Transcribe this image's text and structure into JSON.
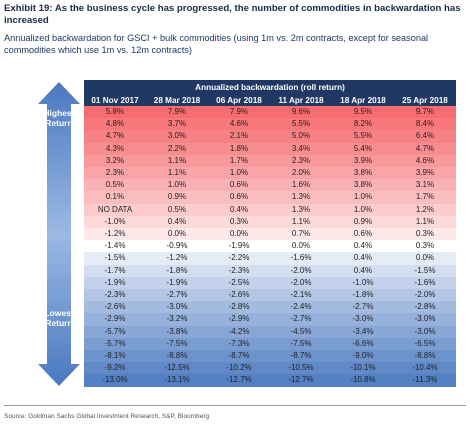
{
  "header": {
    "title": "Exhibit 19: As the business cycle has progressed, the number of commodities in backwardation has increased",
    "subtitle": "Annualized backwardation for GSCI + bulk commodities (using 1m vs. 2m contracts, except for seasonal commodities which use 1m vs. 12m contracts)"
  },
  "arrow": {
    "top_label": "Highest Return",
    "bottom_label": "Lowest Return"
  },
  "table": {
    "title": "Annualized backwardation (roll return)",
    "columns": [
      "01 Nov 2017",
      "28 Mar 2018",
      "06 Apr 2018",
      "11 Apr 2018",
      "18 Apr 2018",
      "25 Apr 2018"
    ],
    "rows": [
      [
        "5.8%",
        "7.9%",
        "7.9%",
        "9.6%",
        "9.5%",
        "9.7%"
      ],
      [
        "4.8%",
        "3.7%",
        "4.6%",
        "5.5%",
        "8.2%",
        "8.4%"
      ],
      [
        "4.7%",
        "3.0%",
        "2.1%",
        "5.0%",
        "5.5%",
        "6.4%"
      ],
      [
        "4.3%",
        "2.2%",
        "1.8%",
        "3.4%",
        "5.4%",
        "4.7%"
      ],
      [
        "3.2%",
        "1.1%",
        "1.7%",
        "2.3%",
        "3.9%",
        "4.6%"
      ],
      [
        "2.3%",
        "1.1%",
        "1.0%",
        "2.0%",
        "3.8%",
        "3.9%"
      ],
      [
        "0.5%",
        "1.0%",
        "0.6%",
        "1.6%",
        "3.8%",
        "3.1%"
      ],
      [
        "0.1%",
        "0.9%",
        "0.6%",
        "1.3%",
        "1.0%",
        "1.7%"
      ],
      [
        "NO DATA",
        "0.5%",
        "0.4%",
        "1.3%",
        "1.0%",
        "1.2%"
      ],
      [
        "-1.0%",
        "0.4%",
        "0.3%",
        "1.1%",
        "0.9%",
        "1.1%"
      ],
      [
        "-1.2%",
        "0.0%",
        "0.0%",
        "0.7%",
        "0.6%",
        "0.3%"
      ],
      [
        "-1.4%",
        "-0.9%",
        "-1.9%",
        "0.0%",
        "0.4%",
        "0.3%"
      ],
      [
        "-1.5%",
        "-1.2%",
        "-2.2%",
        "-1.6%",
        "0.4%",
        "0.0%"
      ],
      [
        "-1.7%",
        "-1.8%",
        "-2.3%",
        "-2.0%",
        "0.4%",
        "-1.5%"
      ],
      [
        "-1.9%",
        "-1.9%",
        "-2.5%",
        "-2.0%",
        "-1.0%",
        "-1.6%"
      ],
      [
        "-2.3%",
        "-2.7%",
        "-2.6%",
        "-2.1%",
        "-1.8%",
        "-2.0%"
      ],
      [
        "-2.6%",
        "-3.0%",
        "-2.8%",
        "-2.4%",
        "-2.7%",
        "-2.8%"
      ],
      [
        "-2.9%",
        "-3.2%",
        "-2.9%",
        "-2.7%",
        "-3.0%",
        "-3.0%"
      ],
      [
        "-5.7%",
        "-3.8%",
        "-4.2%",
        "-4.5%",
        "-3.4%",
        "-3.0%"
      ],
      [
        "-5.7%",
        "-7.5%",
        "-7.3%",
        "-7.5%",
        "-6.6%",
        "-6.5%"
      ],
      [
        "-8.1%",
        "-8.8%",
        "-8.7%",
        "-8.7%",
        "-9.0%",
        "-8.8%"
      ],
      [
        "-9.2%",
        "-12.5%",
        "-10.2%",
        "-10.5%",
        "-10.1%",
        "-10.4%"
      ],
      [
        "-13.0%",
        "-13.1%",
        "-12.7%",
        "-12.7%",
        "-10.8%",
        "-11.3%"
      ]
    ]
  },
  "footer": {
    "source": "Source: Goldman Sachs Global Investment Research, S&P, Bloomberg"
  }
}
